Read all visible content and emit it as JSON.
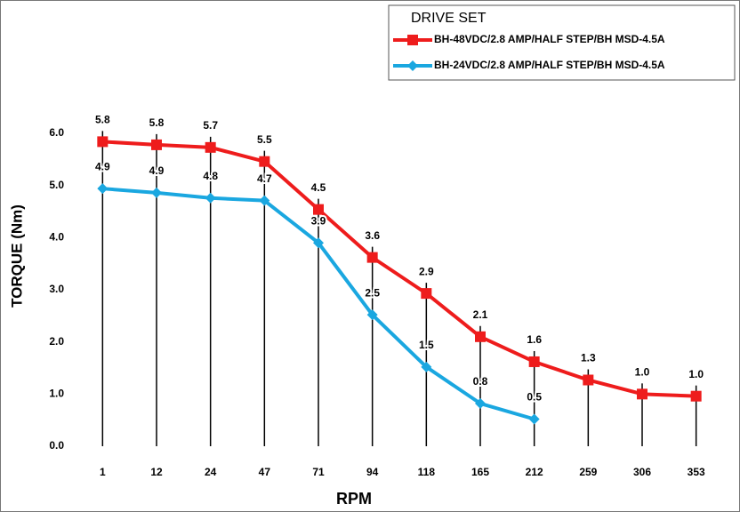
{
  "chart_data": {
    "type": "line",
    "x_label": "RPM",
    "y_label": "TORQUE (Nm)",
    "legend_title": "DRIVE SET",
    "legend": "top-right",
    "categories": [
      "1",
      "12",
      "24",
      "47",
      "71",
      "94",
      "118",
      "165",
      "212",
      "259",
      "306",
      "353"
    ],
    "series": [
      {
        "name": "BH-48VDC/2.8 AMP/HALF STEP/BH MSD-4.5A",
        "color": "#ee1c1c",
        "marker": "square",
        "values": [
          5.84,
          5.78,
          5.73,
          5.46,
          4.54,
          3.62,
          2.93,
          2.1,
          1.62,
          1.27,
          1.0,
          0.96
        ],
        "value_labels": [
          "5.8",
          "5.8",
          "5.7",
          "5.5",
          "4.5",
          "3.6",
          "2.9",
          "2.1",
          "1.6",
          "1.3",
          "1.0",
          "1.0"
        ]
      },
      {
        "name": "BH-24VDC/2.8 AMP/HALF STEP/BH MSD-4.5A",
        "color": "#1aa7e0",
        "marker": "diamond",
        "values": [
          4.94,
          4.86,
          4.76,
          4.71,
          3.9,
          2.52,
          1.52,
          0.82,
          0.52,
          null,
          null,
          null
        ],
        "value_labels": [
          "4.9",
          "4.9",
          "4.8",
          "4.7",
          "3.9",
          "2.5",
          "1.5",
          "0.8",
          "0.5",
          null,
          null,
          null
        ]
      }
    ],
    "ylim": [
      0,
      6
    ],
    "yticks": [
      {
        "value": 0,
        "label": "0.0"
      },
      {
        "value": 1,
        "label": "1.0"
      },
      {
        "value": 2,
        "label": "2.0"
      },
      {
        "value": 3,
        "label": "3.0"
      },
      {
        "value": 4,
        "label": "4.0"
      },
      {
        "value": 5,
        "label": "5.0"
      },
      {
        "value": 6,
        "label": "6.0"
      }
    ],
    "drop_lines": true
  }
}
